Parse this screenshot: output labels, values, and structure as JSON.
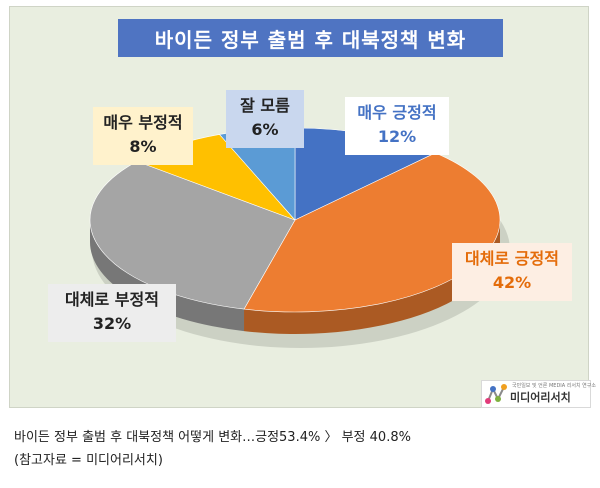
{
  "chart_data": {
    "type": "pie",
    "title": "바이든 정부 출범 후 대북정책 변화",
    "slices": [
      {
        "label": "매우 긍정적",
        "value": 12,
        "value_label": "12%",
        "color": "#4472c4"
      },
      {
        "label": "대체로 긍정적",
        "value": 42,
        "value_label": "42%",
        "color": "#ed7d31"
      },
      {
        "label": "대체로 부정적",
        "value": 32,
        "value_label": "32%",
        "color": "#a5a5a5"
      },
      {
        "label": "매우 부정적",
        "value": 8,
        "value_label": "8%",
        "color": "#ffc000"
      },
      {
        "label": "잘 모름",
        "value": 6,
        "value_label": "6%",
        "color": "#5b9bd5"
      }
    ]
  },
  "logo": {
    "text": "미디어리서치",
    "tagline": "국민일보 및 언론 MEDIA 리서치 연구소",
    "colors": [
      "#e23b7a",
      "#4472c4",
      "#7fb03f",
      "#f0a020"
    ]
  },
  "caption": {
    "line": "바이든 정부 출범 후 대북정책 어떻게 변화…긍정53.4% 〉 부정 40.8%",
    "source": "(참고자료 = 미디어리서치)"
  }
}
